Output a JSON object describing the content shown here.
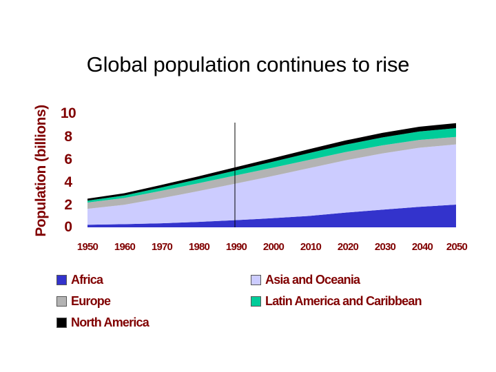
{
  "chart_data": {
    "type": "area",
    "stacked": true,
    "title": "Global population continues to rise",
    "xlabel": "",
    "ylabel": "Population (billions)",
    "ylim": [
      0,
      10
    ],
    "yticks": [
      "0",
      "2",
      "4",
      "6",
      "8",
      "10"
    ],
    "x": [
      1950,
      1960,
      1970,
      1980,
      1990,
      2000,
      2010,
      2020,
      2030,
      2040,
      2050
    ],
    "xticks": [
      "1950",
      "1960",
      "1970",
      "1980",
      "1990",
      "2000",
      "2010",
      "2020",
      "2030",
      "2040",
      "2050"
    ],
    "marker_line_year": 1990,
    "legend_position": "bottom",
    "series": [
      {
        "name": "Africa",
        "color": "#3333cc",
        "values": [
          0.23,
          0.28,
          0.36,
          0.48,
          0.63,
          0.8,
          1.0,
          1.3,
          1.55,
          1.8,
          2.0
        ]
      },
      {
        "name": "Asia and Oceania",
        "color": "#ccccff",
        "values": [
          1.4,
          1.7,
          2.2,
          2.7,
          3.2,
          3.7,
          4.2,
          4.6,
          4.95,
          5.2,
          5.3
        ]
      },
      {
        "name": "Europe",
        "color": "#b3b3b3",
        "values": [
          0.55,
          0.6,
          0.65,
          0.69,
          0.72,
          0.73,
          0.73,
          0.72,
          0.71,
          0.69,
          0.66
        ]
      },
      {
        "name": "Latin America and Caribbean",
        "color": "#00cc99",
        "values": [
          0.17,
          0.22,
          0.29,
          0.36,
          0.44,
          0.52,
          0.59,
          0.65,
          0.7,
          0.74,
          0.77
        ]
      },
      {
        "name": "North America",
        "color": "#000000",
        "values": [
          0.17,
          0.2,
          0.23,
          0.25,
          0.28,
          0.31,
          0.34,
          0.37,
          0.4,
          0.42,
          0.44
        ]
      }
    ]
  }
}
